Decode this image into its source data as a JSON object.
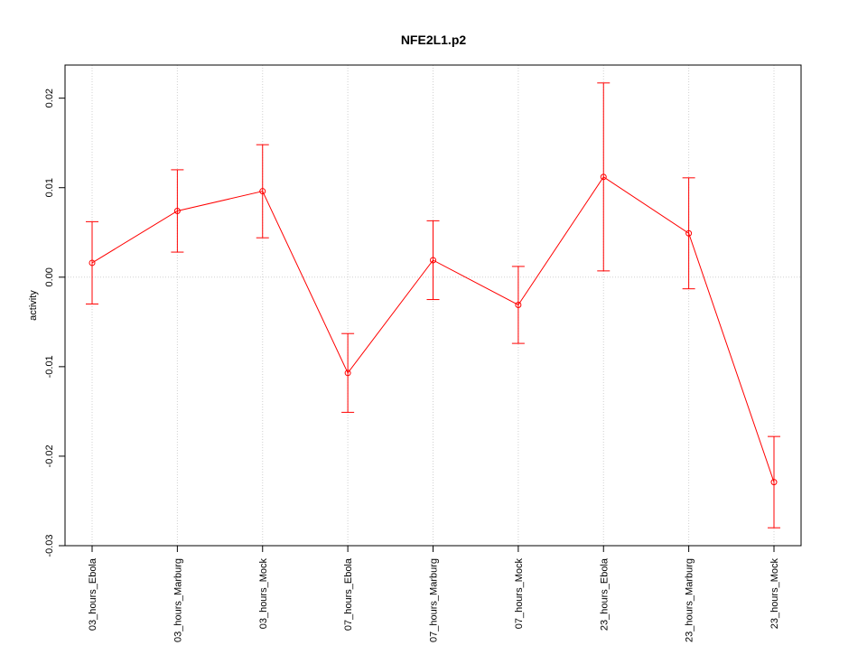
{
  "chart_data": {
    "type": "line",
    "title": "NFE2L1.p2",
    "y_label": "activity",
    "categories": [
      "03_hours_Ebola",
      "03_hours_Marburg",
      "03_hours_Mock",
      "07_hours_Ebola",
      "07_hours_Marburg",
      "07_hours_Mock",
      "23_hours_Ebola",
      "23_hours_Marburg",
      "23_hours_Mock"
    ],
    "values": [
      0.0016,
      0.0074,
      0.0096,
      -0.0107,
      0.0019,
      -0.0031,
      0.0112,
      0.0049,
      -0.0229
    ],
    "errors": [
      0.0046,
      0.0046,
      0.0052,
      0.0044,
      0.0044,
      0.0043,
      0.0105,
      0.0062,
      0.0051
    ],
    "color": "#ff0000",
    "ylim": [
      -0.03,
      0.0237
    ],
    "yticks": [
      -0.03,
      -0.02,
      -0.01,
      {
        "value": 0,
        "label": "0.00"
      },
      0.01,
      0.02
    ],
    "grid": true,
    "reference_line": 0
  }
}
